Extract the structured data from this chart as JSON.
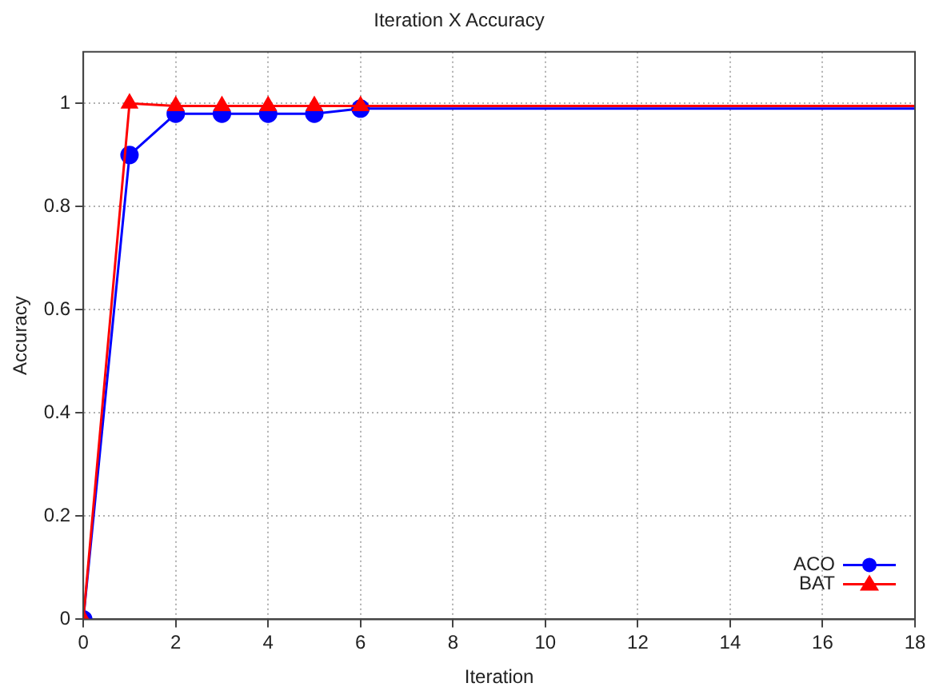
{
  "chart_data": {
    "type": "line",
    "title": "Iteration X Accuracy",
    "xlabel": "Iteration",
    "ylabel": "Accuracy",
    "xlim": [
      0,
      18
    ],
    "xticks": [
      0,
      2,
      4,
      6,
      8,
      10,
      12,
      14,
      16,
      18
    ],
    "ylim": [
      0,
      1.1
    ],
    "yticks": [
      0,
      0.2,
      0.4,
      0.6,
      0.8,
      1
    ],
    "grid": true,
    "legend": "bottom right",
    "line_style": "solid",
    "series": [
      {
        "name": "ACO",
        "color": "#0000ff",
        "marker": "circle",
        "x": [
          0,
          1,
          2,
          3,
          4,
          5,
          6,
          18
        ],
        "values": [
          0,
          0.9,
          0.98,
          0.98,
          0.98,
          0.98,
          0.99,
          0.99
        ]
      },
      {
        "name": "BAT",
        "color": "#ff0000",
        "marker": "triangle",
        "x": [
          0,
          1,
          2,
          3,
          4,
          5,
          6,
          18
        ],
        "values": [
          0,
          1,
          0.995,
          0.995,
          0.995,
          0.995,
          0.995,
          0.995
        ]
      }
    ]
  }
}
